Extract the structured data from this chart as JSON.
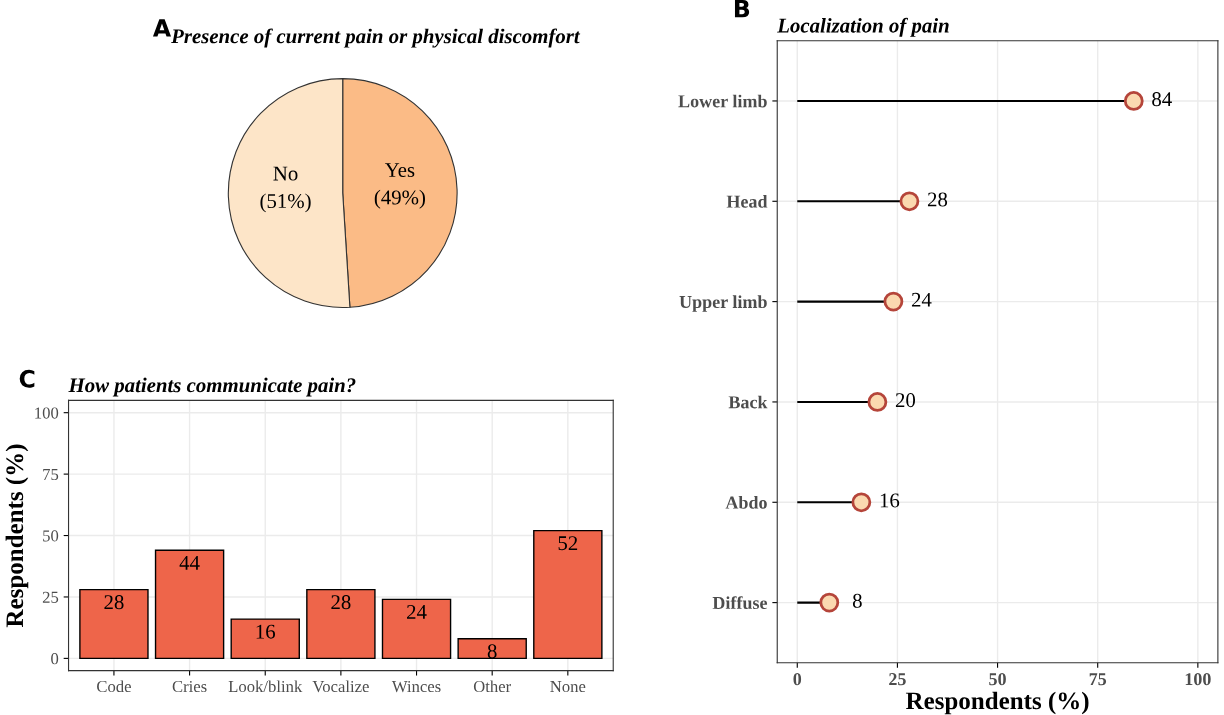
{
  "chart_data": [
    {
      "type": "pie",
      "title": "Presence of current pain or physical discomfort",
      "categories": [
        "Yes",
        "No"
      ],
      "values": [
        49,
        51
      ],
      "value_labels": [
        "(49%)",
        "(51%)"
      ],
      "colors": [
        "#fbbb86",
        "#fde5c8"
      ],
      "annotations": [
        "A"
      ]
    },
    {
      "type": "lollipop",
      "orientation": "horizontal",
      "title": "Localization of pain",
      "xlabel": "Respondents (%)",
      "categories": [
        "Lower limb",
        "Head",
        "Upper limb",
        "Back",
        "Abdo",
        "Diffuse"
      ],
      "values": [
        84,
        28,
        24,
        20,
        16,
        8
      ],
      "color": "#fbd9b0",
      "xlim": [
        -5,
        105
      ],
      "xticks": [
        0,
        25,
        50,
        75,
        100
      ],
      "grid": true,
      "data_labels": true,
      "marker": "circle",
      "annotations": [
        "B"
      ]
    },
    {
      "type": "bar",
      "title": "How patients communicate pain?",
      "ylabel": "Respondents (%)",
      "categories": [
        "Code",
        "Cries",
        "Look/blink",
        "Vocalize",
        "Winces",
        "Other",
        "None"
      ],
      "values": [
        28,
        44,
        16,
        28,
        24,
        8,
        52
      ],
      "color": "#ee654a",
      "ylim": [
        -5,
        105
      ],
      "yticks": [
        0,
        25,
        50,
        75,
        100
      ],
      "grid": true,
      "data_labels": true,
      "annotations": [
        "C"
      ]
    }
  ]
}
